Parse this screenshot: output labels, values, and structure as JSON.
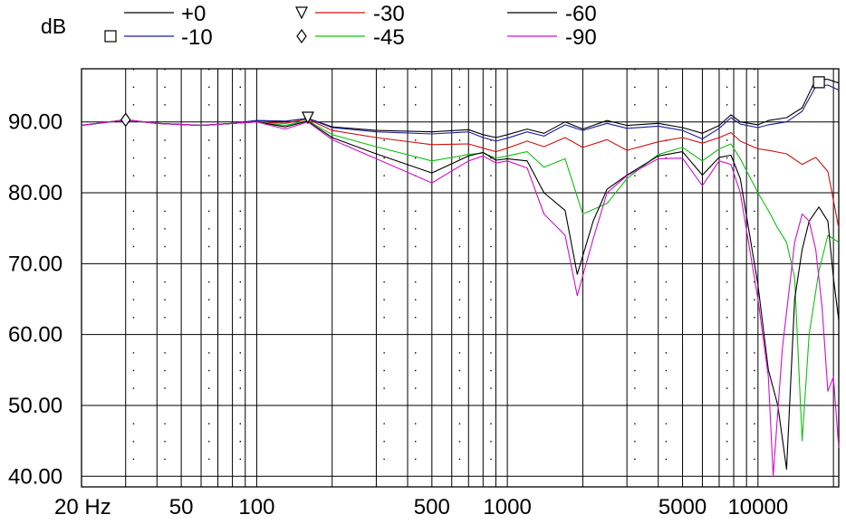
{
  "chart_data": {
    "type": "line",
    "title": "",
    "xlabel": "",
    "ylabel": "dB",
    "x_scale": "log",
    "xlim": [
      20,
      21000
    ],
    "ylim": [
      38.5,
      97.5
    ],
    "grid": true,
    "legend_position": "top",
    "x_tick_labels": [
      {
        "value": 20,
        "label": "20 Hz"
      },
      {
        "value": 50,
        "label": "50"
      },
      {
        "value": 100,
        "label": "100"
      },
      {
        "value": 500,
        "label": "500"
      },
      {
        "value": 1000,
        "label": "1000"
      },
      {
        "value": 5000,
        "label": "5000"
      },
      {
        "value": 10000,
        "label": "10000"
      }
    ],
    "y_tick_labels": [
      {
        "value": 90,
        "label": "90.00"
      },
      {
        "value": 80,
        "label": "80.00"
      },
      {
        "value": 70,
        "label": "70.00"
      },
      {
        "value": 60,
        "label": "60.00"
      },
      {
        "value": 50,
        "label": "50.00"
      },
      {
        "value": 40,
        "label": "40.00"
      }
    ],
    "series": [
      {
        "name": "+0",
        "color": "#000000",
        "marker": "none",
        "points": [
          [
            20,
            89.5
          ],
          [
            30,
            90.3
          ],
          [
            40,
            89.8
          ],
          [
            60,
            89.5
          ],
          [
            80,
            89.8
          ],
          [
            100,
            90.2
          ],
          [
            130,
            90.1
          ],
          [
            160,
            90.5
          ],
          [
            200,
            89.3
          ],
          [
            300,
            88.8
          ],
          [
            500,
            88.6
          ],
          [
            700,
            88.9
          ],
          [
            800,
            88.2
          ],
          [
            900,
            87.8
          ],
          [
            1000,
            88.2
          ],
          [
            1200,
            89
          ],
          [
            1400,
            88.4
          ],
          [
            1700,
            90
          ],
          [
            2000,
            89
          ],
          [
            2500,
            90.2
          ],
          [
            3000,
            89.5
          ],
          [
            4000,
            89.8
          ],
          [
            5000,
            89.2
          ],
          [
            6000,
            88.4
          ],
          [
            7000,
            89.5
          ],
          [
            7800,
            91
          ],
          [
            8500,
            90
          ],
          [
            10000,
            89.6
          ],
          [
            11000,
            90.2
          ],
          [
            13000,
            90.6
          ],
          [
            15000,
            92
          ],
          [
            17000,
            96
          ],
          [
            19000,
            96
          ],
          [
            21000,
            95.5
          ]
        ]
      },
      {
        "name": "-10",
        "color": "#1c1ca0",
        "marker": "square",
        "points": [
          [
            20,
            89.5
          ],
          [
            30,
            90.3
          ],
          [
            40,
            89.8
          ],
          [
            60,
            89.5
          ],
          [
            80,
            89.8
          ],
          [
            100,
            90.2
          ],
          [
            130,
            90.1
          ],
          [
            160,
            90.5
          ],
          [
            200,
            89.2
          ],
          [
            300,
            88.6
          ],
          [
            500,
            88.3
          ],
          [
            700,
            88.6
          ],
          [
            800,
            87.8
          ],
          [
            900,
            87.3
          ],
          [
            1000,
            87.7
          ],
          [
            1200,
            88.6
          ],
          [
            1400,
            88
          ],
          [
            1700,
            89.6
          ],
          [
            2000,
            88.8
          ],
          [
            2500,
            89.8
          ],
          [
            3000,
            89.1
          ],
          [
            4000,
            89.4
          ],
          [
            5000,
            88.8
          ],
          [
            6000,
            87.6
          ],
          [
            7000,
            89.1
          ],
          [
            7800,
            90.6
          ],
          [
            8500,
            89.7
          ],
          [
            10000,
            89.2
          ],
          [
            11000,
            89.6
          ],
          [
            13000,
            90
          ],
          [
            15000,
            91.5
          ],
          [
            17000,
            95
          ],
          [
            19000,
            95.2
          ],
          [
            21000,
            94.5
          ]
        ]
      },
      {
        "name": "-30",
        "color": "#d01010",
        "marker": "triangle-down",
        "points": [
          [
            20,
            89.5
          ],
          [
            30,
            90.3
          ],
          [
            40,
            89.8
          ],
          [
            60,
            89.5
          ],
          [
            80,
            89.8
          ],
          [
            100,
            90
          ],
          [
            130,
            89.8
          ],
          [
            160,
            90.4
          ],
          [
            200,
            88.8
          ],
          [
            300,
            87.8
          ],
          [
            500,
            86.8
          ],
          [
            700,
            86.9
          ],
          [
            800,
            86.3
          ],
          [
            900,
            85.8
          ],
          [
            1000,
            86.3
          ],
          [
            1200,
            87.3
          ],
          [
            1400,
            86.5
          ],
          [
            1700,
            87.8
          ],
          [
            2000,
            86.4
          ],
          [
            2500,
            87.5
          ],
          [
            3000,
            86
          ],
          [
            4000,
            87.2
          ],
          [
            5000,
            87.8
          ],
          [
            6000,
            87
          ],
          [
            7000,
            87.8
          ],
          [
            7800,
            88.5
          ],
          [
            8500,
            87.3
          ],
          [
            10000,
            86.2
          ],
          [
            11000,
            86
          ],
          [
            13000,
            85.5
          ],
          [
            15000,
            84
          ],
          [
            17000,
            85
          ],
          [
            19000,
            83
          ],
          [
            21000,
            75
          ]
        ]
      },
      {
        "name": "-45",
        "color": "#10c010",
        "marker": "diamond",
        "points": [
          [
            20,
            89.5
          ],
          [
            30,
            90.3
          ],
          [
            40,
            89.8
          ],
          [
            60,
            89.5
          ],
          [
            80,
            89.8
          ],
          [
            100,
            90
          ],
          [
            130,
            89.5
          ],
          [
            160,
            90.2
          ],
          [
            200,
            88.2
          ],
          [
            300,
            86.5
          ],
          [
            500,
            84.5
          ],
          [
            700,
            85.4
          ],
          [
            800,
            85.6
          ],
          [
            900,
            84.9
          ],
          [
            1000,
            85.2
          ],
          [
            1200,
            85.8
          ],
          [
            1400,
            83.6
          ],
          [
            1700,
            84.8
          ],
          [
            2000,
            77
          ],
          [
            2500,
            78.5
          ],
          [
            3000,
            82
          ],
          [
            4000,
            85.4
          ],
          [
            5000,
            86.4
          ],
          [
            6000,
            84.5
          ],
          [
            7000,
            86.2
          ],
          [
            7800,
            86.9
          ],
          [
            8500,
            84.8
          ],
          [
            10000,
            80
          ],
          [
            11000,
            77.5
          ],
          [
            12000,
            75
          ],
          [
            13000,
            73
          ],
          [
            14000,
            68
          ],
          [
            15000,
            45
          ],
          [
            16000,
            60
          ],
          [
            17500,
            69
          ],
          [
            19000,
            74
          ],
          [
            21000,
            73
          ]
        ]
      },
      {
        "name": "-60",
        "color": "#000000",
        "marker": "none",
        "points": [
          [
            20,
            89.5
          ],
          [
            30,
            90.3
          ],
          [
            40,
            89.8
          ],
          [
            60,
            89.5
          ],
          [
            80,
            89.8
          ],
          [
            100,
            90
          ],
          [
            130,
            89.3
          ],
          [
            160,
            90.1
          ],
          [
            200,
            87.8
          ],
          [
            300,
            85.5
          ],
          [
            500,
            82.8
          ],
          [
            700,
            85.2
          ],
          [
            800,
            85.7
          ],
          [
            900,
            84.6
          ],
          [
            1000,
            84.8
          ],
          [
            1200,
            84.5
          ],
          [
            1400,
            80
          ],
          [
            1700,
            77.5
          ],
          [
            1900,
            68.5
          ],
          [
            2200,
            76
          ],
          [
            2500,
            80.5
          ],
          [
            3000,
            82.5
          ],
          [
            4000,
            85.2
          ],
          [
            5000,
            85.8
          ],
          [
            6000,
            82.5
          ],
          [
            7000,
            85
          ],
          [
            7800,
            85.3
          ],
          [
            8500,
            82
          ],
          [
            10000,
            67
          ],
          [
            11000,
            55
          ],
          [
            12000,
            50
          ],
          [
            13000,
            41
          ],
          [
            14000,
            65
          ],
          [
            15000,
            72
          ],
          [
            16000,
            76
          ],
          [
            17500,
            78
          ],
          [
            19000,
            76
          ],
          [
            20000,
            68
          ],
          [
            21000,
            62
          ]
        ]
      },
      {
        "name": "-90",
        "color": "#d010d0",
        "marker": "none",
        "points": [
          [
            20,
            89.5
          ],
          [
            30,
            90.3
          ],
          [
            40,
            89.8
          ],
          [
            60,
            89.5
          ],
          [
            80,
            89.8
          ],
          [
            100,
            90
          ],
          [
            130,
            89
          ],
          [
            160,
            90
          ],
          [
            200,
            87.5
          ],
          [
            300,
            84.8
          ],
          [
            500,
            81.4
          ],
          [
            700,
            84.5
          ],
          [
            800,
            85.2
          ],
          [
            900,
            84.2
          ],
          [
            1000,
            84.5
          ],
          [
            1200,
            83.5
          ],
          [
            1400,
            77
          ],
          [
            1700,
            74
          ],
          [
            1900,
            65.5
          ],
          [
            2200,
            73.5
          ],
          [
            2500,
            80
          ],
          [
            3000,
            82.4
          ],
          [
            4000,
            84.8
          ],
          [
            5000,
            84.9
          ],
          [
            6000,
            81
          ],
          [
            7000,
            84.5
          ],
          [
            7800,
            84
          ],
          [
            8500,
            80
          ],
          [
            10000,
            65
          ],
          [
            11000,
            54
          ],
          [
            11500,
            40
          ],
          [
            12500,
            58
          ],
          [
            14000,
            73
          ],
          [
            15000,
            77
          ],
          [
            16000,
            76
          ],
          [
            17000,
            72
          ],
          [
            18000,
            64
          ],
          [
            19000,
            52
          ],
          [
            20000,
            54
          ],
          [
            21000,
            44
          ]
        ]
      }
    ]
  }
}
